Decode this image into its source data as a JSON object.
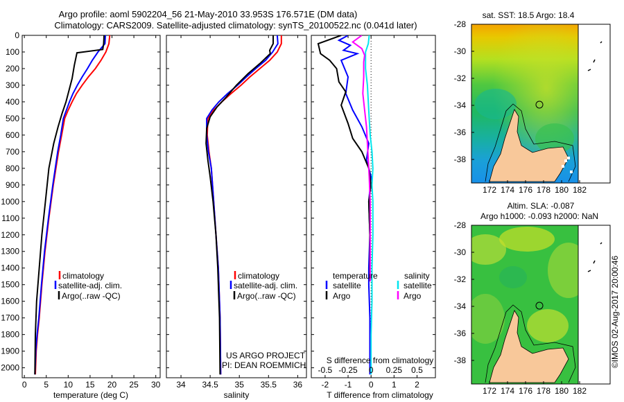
{
  "header": {
    "title_line1": "Argo profile: aoml 5902204_56 21-May-2010 33.953S 176.571E (DM data)",
    "title_line2": "Climatology: CARS2009. Satellite-adjusted climatology: synTS_20100522.nc (0.041d later)"
  },
  "colors": {
    "climatology": "#ff0000",
    "satellite": "#0000ff",
    "argo": "#000000",
    "satellite_s": "#00e5ee",
    "argo_s": "#ff00ff",
    "land": "#f8c89a"
  },
  "chart_data": [
    {
      "type": "line",
      "id": "temperature",
      "xlabel": "temperature (deg C)",
      "xlim": [
        -0.5,
        31
      ],
      "xticks": [
        0,
        5,
        10,
        15,
        20,
        25,
        30
      ],
      "ylim": [
        0,
        2060
      ],
      "yticks": [
        0,
        100,
        200,
        300,
        400,
        500,
        600,
        700,
        800,
        900,
        1000,
        1100,
        1200,
        1300,
        1400,
        1500,
        1600,
        1700,
        1800,
        1900,
        2000
      ],
      "legend": [
        "climatology",
        "satellite-adj. clim.",
        "Argo(..raw -QC)"
      ],
      "series": [
        {
          "name": "climatology",
          "color": "#ff0000",
          "x": [
            19.5,
            19.3,
            18.6,
            17.5,
            16.2,
            14.6,
            13.2,
            11.9,
            10.9,
            10.0,
            9.2,
            8.5,
            7.8,
            6.6,
            5.6,
            4.7,
            4.0,
            3.4,
            3.0,
            2.7,
            2.5
          ],
          "y": [
            0,
            50,
            100,
            150,
            200,
            250,
            300,
            350,
            400,
            450,
            500,
            600,
            700,
            900,
            1100,
            1300,
            1500,
            1700,
            1800,
            1900,
            2040
          ]
        },
        {
          "name": "satellite-adj. clim.",
          "color": "#0000ff",
          "x": [
            18.5,
            18.4,
            16.8,
            15.5,
            14.4,
            13.2,
            12.1,
            11.1,
            10.3,
            9.6,
            8.9,
            8.3,
            7.6,
            6.5,
            5.5,
            4.6,
            3.9,
            3.3,
            2.9,
            2.6,
            2.4
          ],
          "y": [
            0,
            50,
            100,
            150,
            200,
            250,
            300,
            350,
            400,
            450,
            500,
            600,
            700,
            900,
            1100,
            1300,
            1500,
            1700,
            1800,
            1900,
            2040
          ]
        },
        {
          "name": "Argo(..raw -QC)",
          "color": "#000000",
          "x": [
            18.2,
            18.1,
            17.9,
            12.0,
            11.4,
            10.9,
            10.2,
            9.5,
            8.6,
            7.7,
            6.7,
            5.6,
            4.8,
            4.0,
            3.4,
            2.8,
            2.5,
            2.4
          ],
          "y": [
            0,
            50,
            85,
            105,
            180,
            260,
            330,
            400,
            470,
            550,
            650,
            800,
            1000,
            1200,
            1400,
            1600,
            1800,
            2040
          ]
        }
      ]
    },
    {
      "type": "line",
      "id": "salinity",
      "xlabel": "salinity",
      "xlim": [
        33.75,
        36.15
      ],
      "xticks": [
        34,
        34.5,
        35,
        35.5,
        36
      ],
      "ylim": [
        0,
        2060
      ],
      "legend": [
        "climatology",
        "satellite-adj. clim.",
        "Argo(..raw -QC)"
      ],
      "series": [
        {
          "name": "climatology",
          "color": "#ff0000",
          "x": [
            35.72,
            35.72,
            35.65,
            35.52,
            35.35,
            35.18,
            35.03,
            34.86,
            34.7,
            34.56,
            34.46,
            34.45,
            34.48,
            34.52,
            34.56,
            34.6,
            34.64,
            34.67,
            34.68
          ],
          "y": [
            0,
            50,
            100,
            150,
            200,
            250,
            300,
            350,
            400,
            450,
            500,
            600,
            700,
            800,
            1000,
            1200,
            1400,
            1700,
            2040
          ]
        },
        {
          "name": "satellite-adj. clim.",
          "color": "#0000ff",
          "x": [
            35.65,
            35.66,
            35.57,
            35.45,
            35.28,
            35.12,
            34.97,
            34.8,
            34.65,
            34.53,
            34.44,
            34.44,
            34.47,
            34.52,
            34.56,
            34.6,
            34.64,
            34.67,
            34.68
          ],
          "y": [
            0,
            50,
            100,
            150,
            200,
            250,
            300,
            350,
            400,
            450,
            500,
            600,
            700,
            800,
            1000,
            1200,
            1400,
            1700,
            2040
          ]
        },
        {
          "name": "Argo(..raw -QC)",
          "color": "#000000",
          "x": [
            35.58,
            35.58,
            35.52,
            35.53,
            35.35,
            35.15,
            34.95,
            34.78,
            34.62,
            34.5,
            34.44,
            34.43,
            34.46,
            34.5,
            34.55,
            34.6,
            34.63,
            34.66,
            34.67
          ],
          "y": [
            0,
            50,
            90,
            110,
            170,
            230,
            300,
            370,
            430,
            490,
            560,
            650,
            750,
            850,
            1000,
            1200,
            1400,
            1700,
            2040
          ]
        }
      ]
    },
    {
      "type": "line",
      "id": "difference",
      "xlabel": "T difference from climatology",
      "xlabel_top": "S difference from climatology",
      "xlim": [
        -2.6,
        2.8
      ],
      "xticks": [
        -2,
        -1,
        0,
        1,
        2
      ],
      "xticks_s": [
        -0.5,
        -0.25,
        0,
        0.25,
        0.5
      ],
      "xtick_labels_s": [
        "-0.5",
        "-0.25",
        "0",
        "0.25",
        "0.5"
      ],
      "ylim": [
        0,
        2060
      ],
      "legend_temperature": [
        "temperature",
        "satellite",
        "Argo"
      ],
      "legend_salinity": [
        "salinity",
        "satellite",
        "Argo"
      ],
      "series": [
        {
          "name": "T satellite",
          "color": "#0000ff",
          "x": [
            -1.0,
            -1.4,
            -0.9,
            -1.2,
            -0.6,
            -1.3,
            -1.0,
            -1.1,
            -0.8,
            -0.4,
            -0.1,
            -0.2,
            0.0,
            -0.1,
            -0.05,
            -0.1,
            -0.1,
            -0.05,
            -0.05
          ],
          "y": [
            0,
            30,
            60,
            90,
            110,
            150,
            250,
            350,
            450,
            550,
            650,
            750,
            850,
            1000,
            1200,
            1400,
            1500,
            1700,
            2040
          ]
        },
        {
          "name": "T Argo",
          "color": "#000000",
          "x": [
            -1.3,
            -2.3,
            -2.2,
            -1.8,
            -1.5,
            -1.4,
            -1.1,
            -1.3,
            -1.0,
            -0.8,
            -0.4,
            -0.1,
            0.0,
            -0.1,
            -0.05,
            -0.05,
            -0.05
          ],
          "y": [
            0,
            50,
            110,
            150,
            200,
            280,
            340,
            420,
            530,
            620,
            700,
            800,
            900,
            1000,
            1200,
            1400,
            1480
          ]
        },
        {
          "name": "S satellite",
          "color": "#00e5ee",
          "x": [
            -0.02,
            -0.03,
            -0.06,
            -0.06,
            -0.04,
            -0.03,
            -0.02,
            -0.01,
            0.01,
            0.02,
            0.01,
            0.02,
            0.02,
            0.01,
            0.01,
            0.0,
            0.0
          ],
          "y": [
            0,
            50,
            100,
            200,
            300,
            400,
            500,
            600,
            700,
            800,
            900,
            1000,
            1200,
            1400,
            1600,
            1800,
            2040
          ]
        },
        {
          "name": "S Argo",
          "color": "#ff00ff",
          "x": [
            -0.1,
            -0.2,
            -0.1,
            -0.07,
            -0.08,
            -0.08,
            -0.09,
            -0.07,
            -0.05,
            -0.04,
            -0.03,
            -0.02,
            -0.01,
            -0.01
          ],
          "y": [
            0,
            40,
            80,
            120,
            160,
            250,
            350,
            450,
            550,
            650,
            750,
            850,
            1000,
            1480
          ]
        }
      ]
    }
  ],
  "maps": {
    "sst": {
      "title": "sat. SST: 18.5 Argo: 18.4"
    },
    "sla": {
      "title_line1": "Altim. SLA: -0.087",
      "title_line2": "Argo h1000: -0.093 h2000: NaN"
    },
    "lat_ticks": [
      "-28",
      "-30",
      "-32",
      "-34",
      "-36",
      "-38"
    ],
    "lon_ticks": [
      "172",
      "174",
      "176",
      "178",
      "180",
      "182"
    ]
  },
  "panel_text": {
    "project_line1": "US ARGO PROJECT",
    "project_line2": "PI: DEAN ROEMMICH"
  },
  "footer": {
    "stamp": "©IMOS 02-Aug-2017 20:00:46"
  }
}
